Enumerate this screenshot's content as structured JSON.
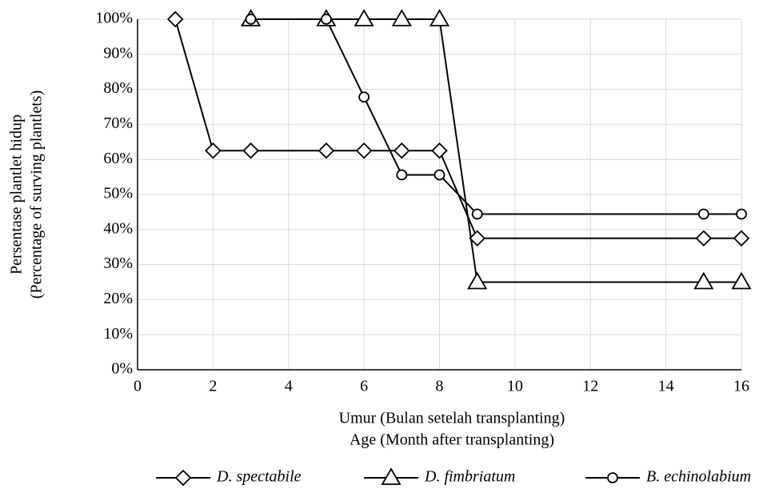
{
  "chart_data": {
    "type": "line",
    "x_label": [
      "Umur (Bulan setelah transplanting)",
      "Age (Month after transplanting)"
    ],
    "y_label": [
      "Persentase plantlet hidup",
      "(Percentage of surving plantlets)"
    ],
    "xlim": [
      0,
      16
    ],
    "xticks": [
      0,
      2,
      4,
      6,
      8,
      10,
      12,
      14,
      16
    ],
    "ylim": [
      0,
      100
    ],
    "yticks": [
      {
        "value": 0,
        "label": "0%"
      },
      {
        "value": 10,
        "label": "10%"
      },
      {
        "value": 20,
        "label": "20%"
      },
      {
        "value": 30,
        "label": "30%"
      },
      {
        "value": 40,
        "label": "40%"
      },
      {
        "value": 50,
        "label": "50%"
      },
      {
        "value": 60,
        "label": "60%"
      },
      {
        "value": 70,
        "label": "70%"
      },
      {
        "value": 80,
        "label": "80%"
      },
      {
        "value": 90,
        "label": "90%"
      },
      {
        "value": 100,
        "label": "100%"
      }
    ],
    "grid": true,
    "series": [
      {
        "name": "D. spectabile",
        "marker": "diamond",
        "color": "#000000",
        "x": [
          1,
          2,
          3,
          5,
          6,
          7,
          8,
          9,
          15,
          16
        ],
        "values": [
          100,
          62.5,
          62.5,
          62.5,
          62.5,
          62.5,
          62.5,
          37.5,
          37.5,
          37.5
        ]
      },
      {
        "name": "D. fimbriatum",
        "marker": "triangle",
        "color": "#000000",
        "x": [
          3,
          5,
          6,
          7,
          8,
          9,
          15,
          16
        ],
        "values": [
          100,
          100,
          100,
          100,
          100,
          25,
          25,
          25
        ]
      },
      {
        "name": "B. echinolabium",
        "marker": "circle",
        "color": "#000000",
        "x": [
          3,
          5,
          6,
          7,
          8,
          9,
          15,
          16
        ],
        "values": [
          100,
          100,
          77.8,
          55.6,
          55.6,
          44.4,
          44.4,
          44.4
        ]
      }
    ]
  }
}
